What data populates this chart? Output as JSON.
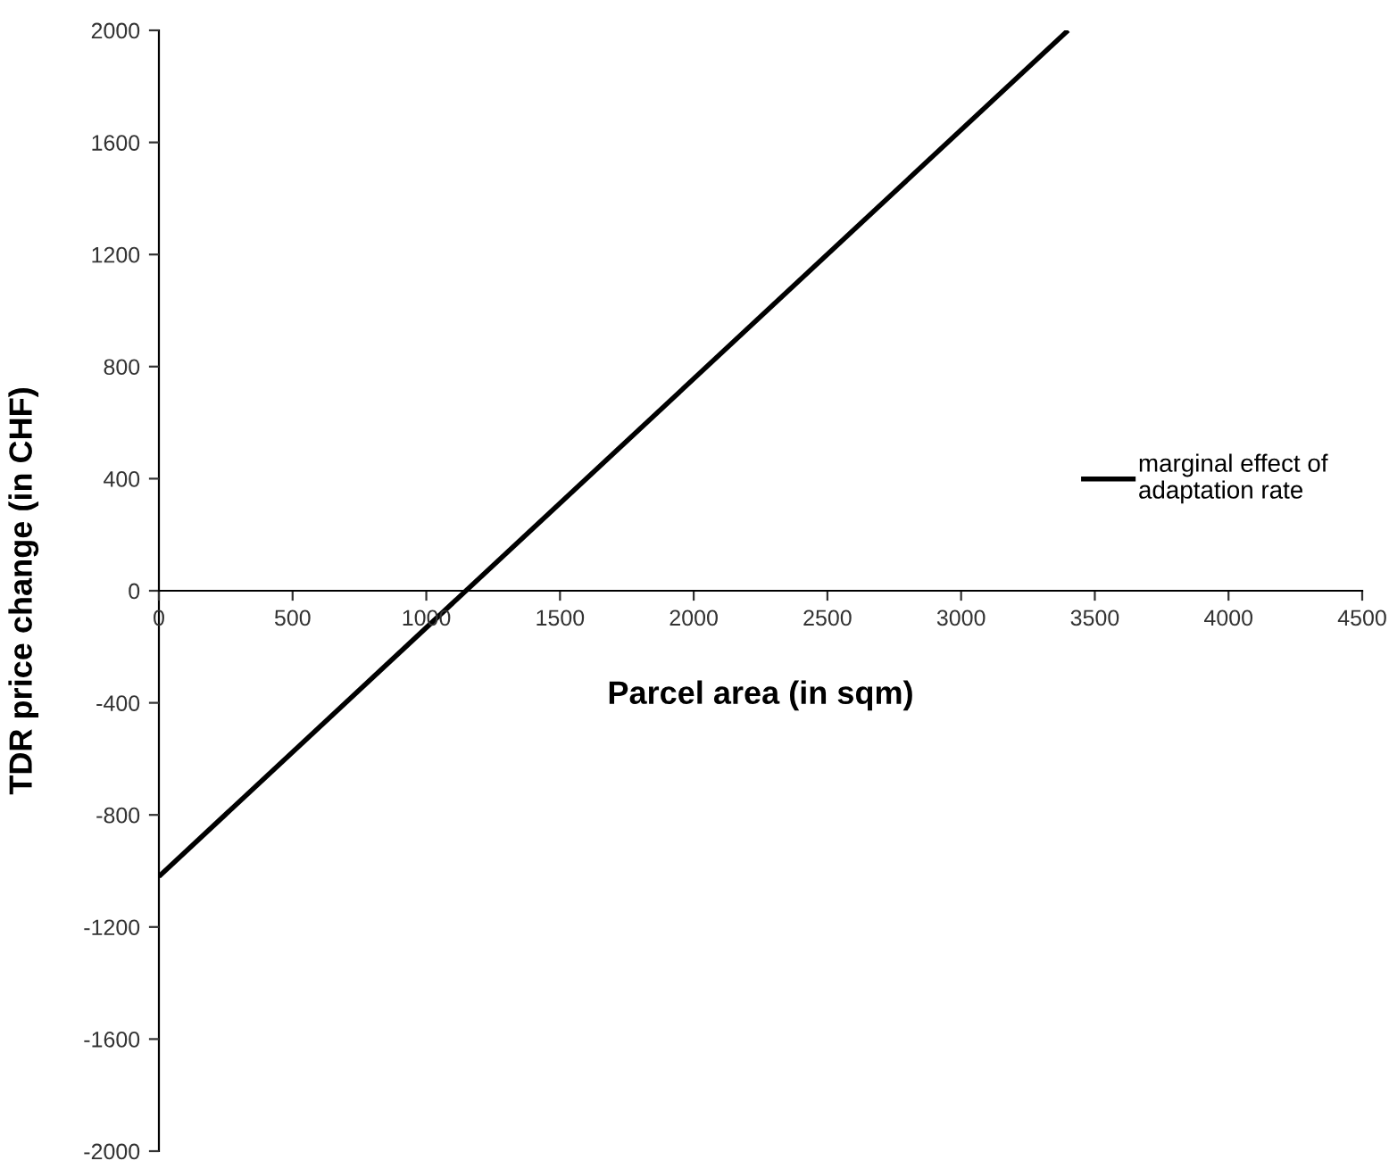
{
  "chart_data": {
    "type": "line",
    "xlabel": "Parcel area (in sqm)",
    "ylabel": "TDR price change (in CHF)",
    "x": [
      0,
      3400
    ],
    "series": [
      {
        "name": "marginal effect of\nadaptation rate",
        "color": "#000000",
        "values": [
          -1020,
          2000
        ]
      }
    ],
    "xlim": [
      0,
      4500
    ],
    "xticks": [
      0,
      500,
      1000,
      1500,
      2000,
      2500,
      3000,
      3500,
      4000,
      4500
    ],
    "ylim": [
      -2000,
      2000
    ],
    "yticks": [
      -2000,
      -1600,
      -1200,
      -800,
      -400,
      0,
      400,
      800,
      1200,
      1600,
      2000
    ],
    "grid": false,
    "legend": "right",
    "marker": "none",
    "line_style": "solid"
  }
}
